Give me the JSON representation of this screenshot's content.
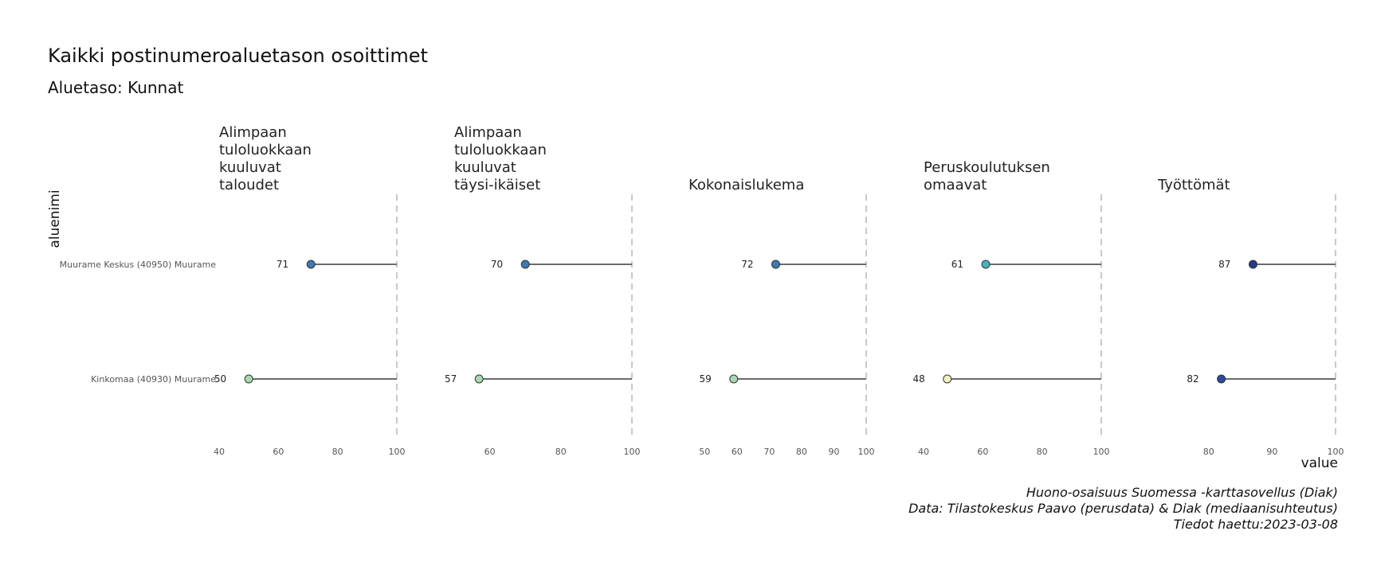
{
  "chart_data": {
    "type": "lollipop",
    "title": "Kaikki postinumeroaluetason osoittimet",
    "subtitle": "Aluetaso: Kunnat",
    "ylabel": "aluenimi",
    "xlabel": "value",
    "reference_value": 100,
    "categories": [
      "Muurame Keskus (40950) Muurame",
      "Kinkomaa (40930) Muurame"
    ],
    "facets": [
      {
        "title_lines": [
          "Alimpaan",
          "tuloluokkaan",
          "kuuluvat",
          "taloudet"
        ],
        "xlim": [
          40,
          100
        ],
        "ticks": [
          40,
          60,
          80,
          100
        ],
        "values": [
          71,
          50
        ],
        "colors": [
          "#3d7ab3",
          "#a8d8b0"
        ]
      },
      {
        "title_lines": [
          "Alimpaan",
          "tuloluokkaan",
          "kuuluvat",
          "täysi-ikäiset"
        ],
        "xlim": [
          50,
          100
        ],
        "ticks": [
          60,
          80,
          100
        ],
        "values": [
          70,
          57
        ],
        "colors": [
          "#3d7ab3",
          "#a8d8b0"
        ]
      },
      {
        "title_lines": [
          "Kokonaislukema"
        ],
        "xlim": [
          45,
          100
        ],
        "ticks": [
          50,
          60,
          70,
          80,
          90,
          100
        ],
        "values": [
          72,
          59
        ],
        "colors": [
          "#3d7ab3",
          "#a8d8b0"
        ]
      },
      {
        "title_lines": [
          "Peruskoulutuksen",
          "omaavat"
        ],
        "xlim": [
          40,
          100
        ],
        "ticks": [
          40,
          60,
          80,
          100
        ],
        "values": [
          61,
          48
        ],
        "colors": [
          "#45b3bc",
          "#f2f2c0"
        ]
      },
      {
        "title_lines": [
          "Työttömät"
        ],
        "xlim": [
          72,
          100
        ],
        "ticks": [
          80,
          90,
          100
        ],
        "values": [
          87,
          82
        ],
        "colors": [
          "#253a8e",
          "#2a4aa0"
        ]
      }
    ],
    "caption_lines": [
      "Huono-osaisuus Suomessa -karttasovellus (Diak)",
      "Data: Tilastokeskus Paavo (perusdata) & Diak (mediaanisuhteutus)",
      "Tiedot haettu:2023-03-08"
    ]
  }
}
